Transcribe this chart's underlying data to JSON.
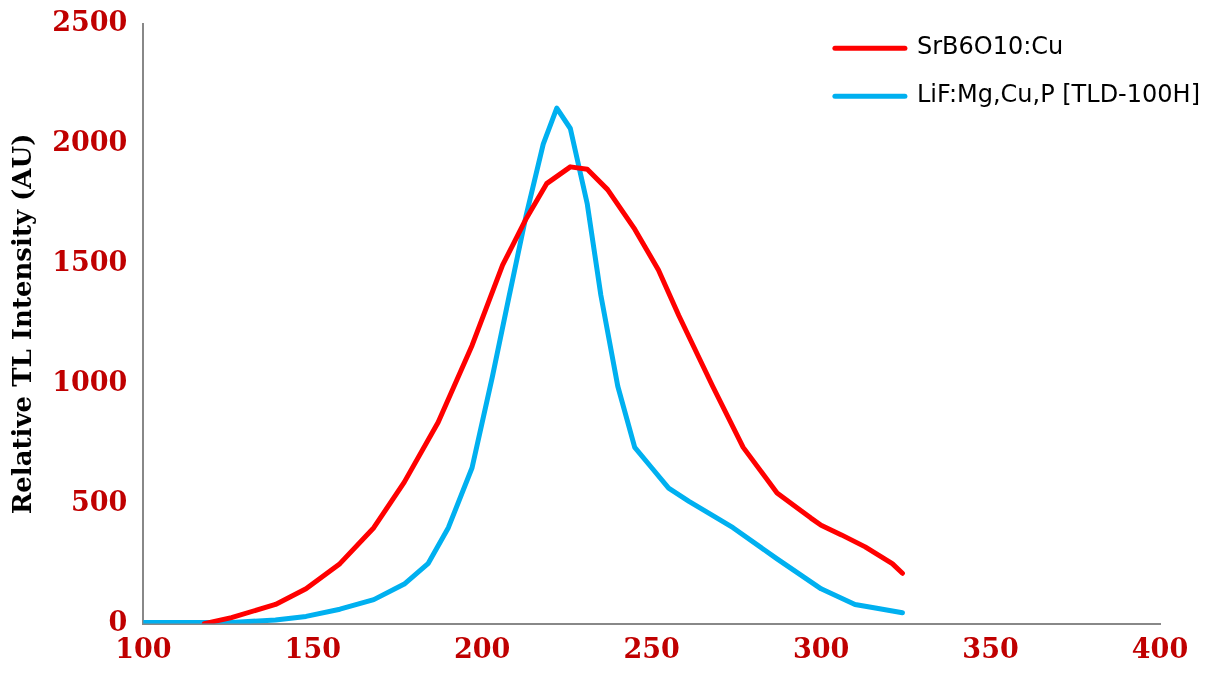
{
  "chart_data": {
    "type": "line",
    "ylabel": "Relative TL Intensity (AU)",
    "xlim": [
      100,
      400
    ],
    "xticks": [
      100,
      150,
      200,
      250,
      300,
      350,
      400
    ],
    "ylim": [
      0,
      2500
    ],
    "yticks": [
      0,
      500,
      1000,
      1500,
      2000,
      2500
    ],
    "grid": false,
    "legend": "top right",
    "marker": "none",
    "line_style": "solid",
    "series": [
      {
        "name": "SrB6O10:Cu",
        "color": "#ff0000",
        "x": [
          118,
          126,
          139,
          148,
          158,
          168,
          177,
          187,
          197,
          206,
          213,
          219,
          226,
          231,
          237,
          245,
          252,
          258,
          268,
          277,
          287,
          297,
          300,
          306,
          313,
          321,
          324
        ],
        "values": [
          0,
          25,
          80,
          145,
          250,
          400,
          590,
          840,
          1160,
          1495,
          1690,
          1835,
          1905,
          1895,
          1810,
          1645,
          1475,
          1285,
          990,
          735,
          545,
          440,
          410,
          370,
          320,
          250,
          210
        ]
      },
      {
        "name": "LiF:Mg,Cu,P [TLD-100H]",
        "color": "#00b0f0",
        "x": [
          100,
          126,
          139,
          148,
          158,
          168,
          177,
          184,
          190,
          197,
          203,
          208,
          213,
          218,
          222,
          226,
          231,
          235,
          240,
          245,
          250,
          255,
          261,
          274,
          287,
          300,
          310,
          316,
          324
        ],
        "values": [
          5,
          5,
          15,
          30,
          60,
          100,
          165,
          250,
          400,
          650,
          1030,
          1370,
          1705,
          2000,
          2150,
          2065,
          1750,
          1370,
          990,
          735,
          650,
          565,
          510,
          400,
          270,
          145,
          80,
          65,
          45
        ]
      }
    ]
  }
}
